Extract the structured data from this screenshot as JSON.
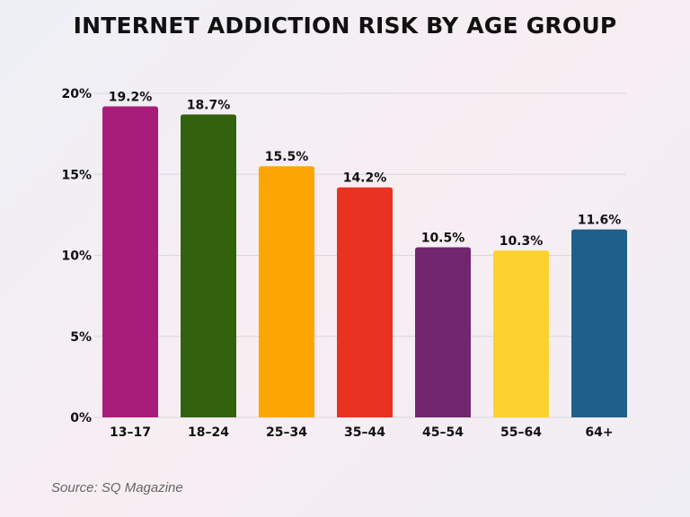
{
  "chart_data": {
    "type": "bar",
    "title": "INTERNET ADDICTION RISK BY AGE GROUP",
    "categories": [
      "13–17",
      "18–24",
      "25–34",
      "35–44",
      "45–54",
      "55–64",
      "64+"
    ],
    "values": [
      19.2,
      18.7,
      15.5,
      14.2,
      10.5,
      10.3,
      11.6
    ],
    "data_labels": [
      "19.2%",
      "18.7%",
      "15.5%",
      "14.2%",
      "10.5%",
      "10.3%",
      "11.6%"
    ],
    "colors": [
      "#a91d7a",
      "#33620f",
      "#fca503",
      "#e93222",
      "#72266f",
      "#fdd22f",
      "#1f5f8b"
    ],
    "ylim": [
      0,
      20
    ],
    "yticks": [
      0,
      5,
      10,
      15,
      20
    ],
    "ytick_labels": [
      "0%",
      "5%",
      "10%",
      "15%",
      "20%"
    ],
    "xlabel": "",
    "ylabel": "",
    "grid": true,
    "source": "Source: SQ Magazine"
  }
}
